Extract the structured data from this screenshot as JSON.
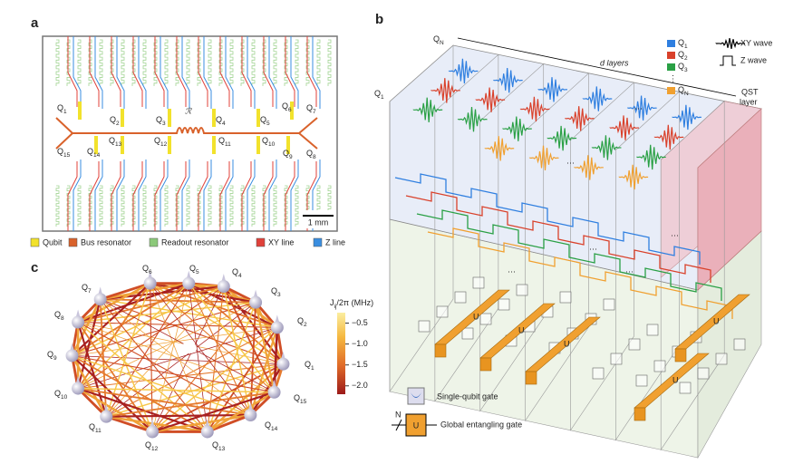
{
  "panel_a": {
    "label": "a",
    "qubits": [
      {
        "text": "Q",
        "sub": "1"
      },
      {
        "text": "Q",
        "sub": "2"
      },
      {
        "text": "Q",
        "sub": "3"
      },
      {
        "text": "Q",
        "sub": "4"
      },
      {
        "text": "Q",
        "sub": "5"
      },
      {
        "text": "Q",
        "sub": "6"
      },
      {
        "text": "Q",
        "sub": "7"
      },
      {
        "text": "Q",
        "sub": "8"
      },
      {
        "text": "Q",
        "sub": "9"
      },
      {
        "text": "Q",
        "sub": "10"
      },
      {
        "text": "Q",
        "sub": "11"
      },
      {
        "text": "Q",
        "sub": "12"
      },
      {
        "text": "Q",
        "sub": "13"
      },
      {
        "text": "Q",
        "sub": "14"
      },
      {
        "text": "Q",
        "sub": "15"
      }
    ],
    "resonator": "ℛ",
    "scale_bar": "1 mm",
    "legend": [
      {
        "label": "Qubit",
        "color": "#f2e22c"
      },
      {
        "label": "Bus resonator",
        "color": "#d9622b"
      },
      {
        "label": "Readout resonator",
        "color": "#8cc97a"
      },
      {
        "label": "XY line",
        "color": "#e0413a"
      },
      {
        "label": "Z line",
        "color": "#3a8ee0"
      }
    ]
  },
  "panel_b": {
    "label": "b",
    "top_qubit": {
      "text": "Q",
      "sub": "N"
    },
    "left_qubit": {
      "text": "Q",
      "sub": "1"
    },
    "depth_label": "d layers",
    "qst_label": [
      "QST",
      "layer"
    ],
    "ellipsis": "⋯",
    "legend": [
      {
        "text": "Q",
        "sub": "1",
        "color": "#2f7fe0"
      },
      {
        "text": "Q",
        "sub": "2",
        "color": "#d9412b"
      },
      {
        "text": "Q",
        "sub": "3",
        "color": "#2aa045"
      },
      {
        "text": "⋮"
      },
      {
        "text": "Q",
        "sub": "N",
        "color": "#f0a030"
      }
    ],
    "xy_wave": "XY wave",
    "z_wave": "Z wave",
    "gate_legend": {
      "single": "Single-qubit gate",
      "n": "N",
      "u": "U",
      "global": "Global entangling gate"
    }
  },
  "panel_c": {
    "label": "c",
    "qubits": [
      {
        "text": "Q",
        "sub": "1"
      },
      {
        "text": "Q",
        "sub": "2"
      },
      {
        "text": "Q",
        "sub": "3"
      },
      {
        "text": "Q",
        "sub": "4"
      },
      {
        "text": "Q",
        "sub": "5"
      },
      {
        "text": "Q",
        "sub": "6"
      },
      {
        "text": "Q",
        "sub": "7"
      },
      {
        "text": "Q",
        "sub": "8"
      },
      {
        "text": "Q",
        "sub": "9"
      },
      {
        "text": "Q",
        "sub": "10"
      },
      {
        "text": "Q",
        "sub": "11"
      },
      {
        "text": "Q",
        "sub": "12"
      },
      {
        "text": "Q",
        "sub": "13"
      },
      {
        "text": "Q",
        "sub": "14"
      },
      {
        "text": "Q",
        "sub": "15"
      }
    ],
    "colorbar": {
      "title": {
        "text": "J",
        "sub": "ij",
        "rest": "/2π (MHz)"
      },
      "lim": [
        -0.25,
        -2.2
      ],
      "ticks": [
        {
          "value": -0.5,
          "label": "−0.5"
        },
        {
          "value": -1.0,
          "label": "−1.0"
        },
        {
          "value": -1.5,
          "label": "−1.5"
        },
        {
          "value": -2.0,
          "label": "−2.0"
        }
      ]
    }
  }
}
